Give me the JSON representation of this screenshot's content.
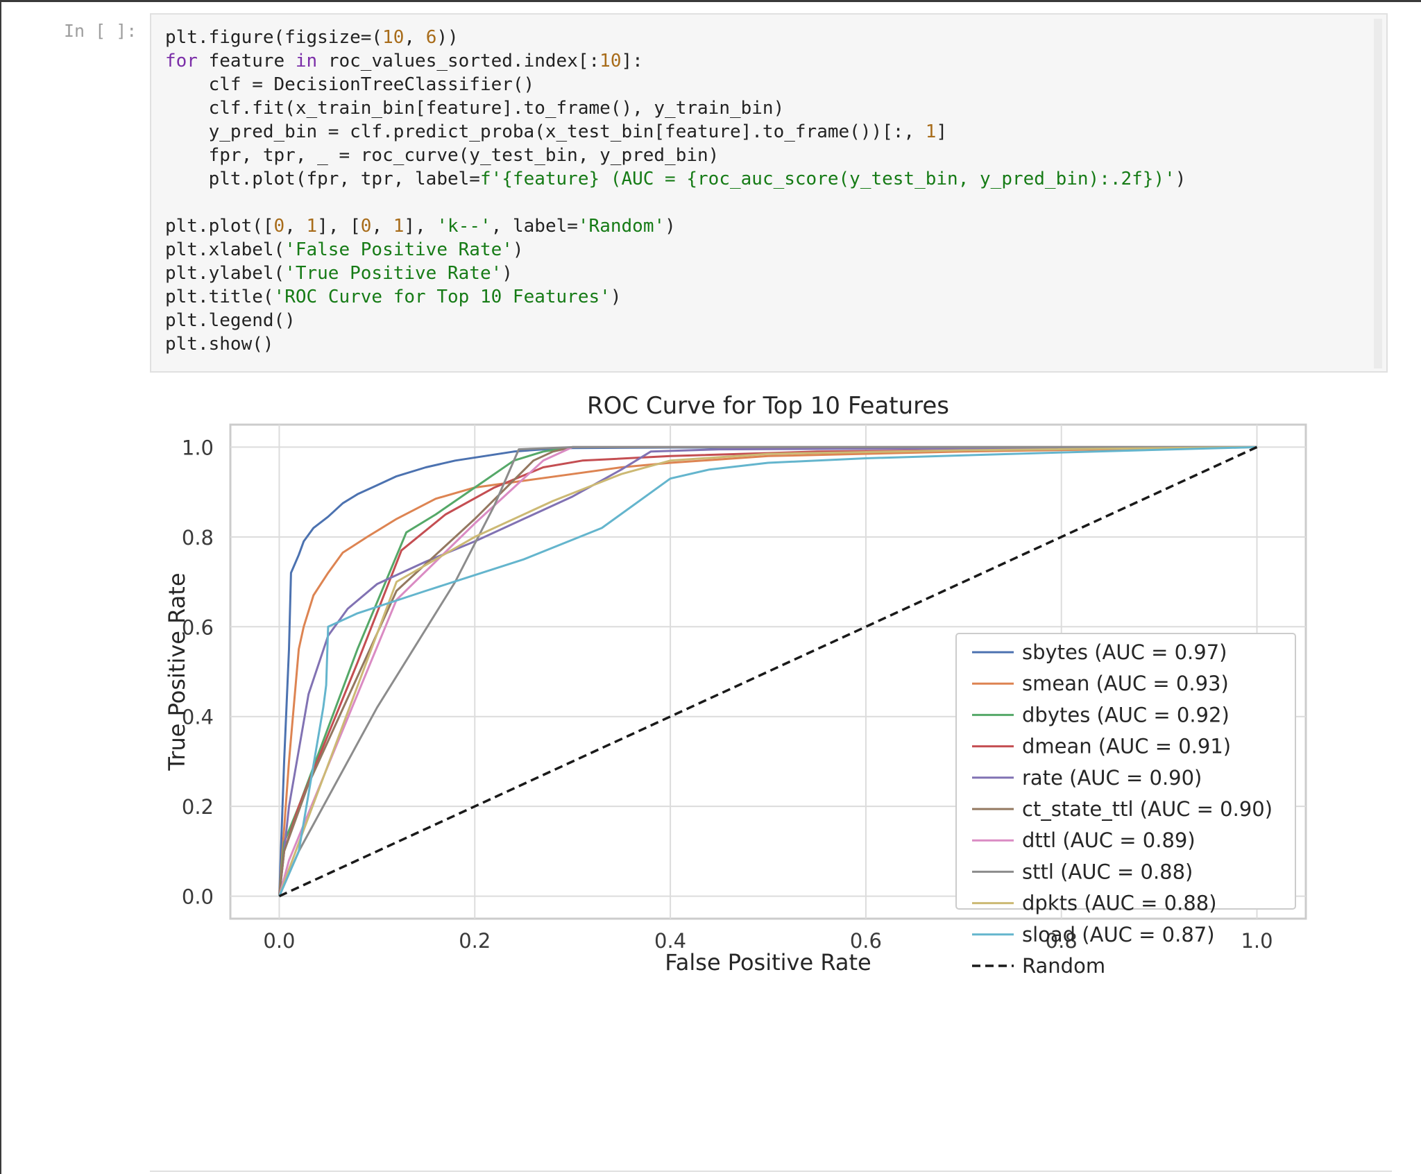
{
  "notebook": {
    "prompt": "In [ ]:",
    "code_lines": [
      [
        {
          "t": "p",
          "s": "plt.figure(figsize=("
        },
        {
          "t": "num",
          "s": "10"
        },
        {
          "t": "p",
          "s": ", "
        },
        {
          "t": "num",
          "s": "6"
        },
        {
          "t": "p",
          "s": "))"
        }
      ],
      [
        {
          "t": "kw",
          "s": "for"
        },
        {
          "t": "p",
          "s": " feature "
        },
        {
          "t": "kw",
          "s": "in"
        },
        {
          "t": "p",
          "s": " roc_values_sorted.index[:"
        },
        {
          "t": "num",
          "s": "10"
        },
        {
          "t": "p",
          "s": "]:"
        }
      ],
      [
        {
          "t": "p",
          "s": "    clf = DecisionTreeClassifier()"
        }
      ],
      [
        {
          "t": "p",
          "s": "    clf.fit(x_train_bin[feature].to_frame(), y_train_bin)"
        }
      ],
      [
        {
          "t": "p",
          "s": "    y_pred_bin = clf.predict_proba(x_test_bin[feature].to_frame())[:, "
        },
        {
          "t": "num",
          "s": "1"
        },
        {
          "t": "p",
          "s": "]"
        }
      ],
      [
        {
          "t": "p",
          "s": "    fpr, tpr, _ = roc_curve(y_test_bin, y_pred_bin)"
        }
      ],
      [
        {
          "t": "p",
          "s": "    plt.plot(fpr, tpr, label="
        },
        {
          "t": "str",
          "s": "f'{feature} (AUC = {roc_auc_score(y_test_bin, y_pred_bin):.2f})'"
        },
        {
          "t": "p",
          "s": ")"
        }
      ],
      [],
      [
        {
          "t": "p",
          "s": "plt.plot(["
        },
        {
          "t": "num",
          "s": "0"
        },
        {
          "t": "p",
          "s": ", "
        },
        {
          "t": "num",
          "s": "1"
        },
        {
          "t": "p",
          "s": "], ["
        },
        {
          "t": "num",
          "s": "0"
        },
        {
          "t": "p",
          "s": ", "
        },
        {
          "t": "num",
          "s": "1"
        },
        {
          "t": "p",
          "s": "], "
        },
        {
          "t": "str",
          "s": "'k--'"
        },
        {
          "t": "p",
          "s": ", label="
        },
        {
          "t": "str",
          "s": "'Random'"
        },
        {
          "t": "p",
          "s": ")"
        }
      ],
      [
        {
          "t": "p",
          "s": "plt.xlabel("
        },
        {
          "t": "str",
          "s": "'False Positive Rate'"
        },
        {
          "t": "p",
          "s": ")"
        }
      ],
      [
        {
          "t": "p",
          "s": "plt.ylabel("
        },
        {
          "t": "str",
          "s": "'True Positive Rate'"
        },
        {
          "t": "p",
          "s": ")"
        }
      ],
      [
        {
          "t": "p",
          "s": "plt.title("
        },
        {
          "t": "str",
          "s": "'ROC Curve for Top 10 Features'"
        },
        {
          "t": "p",
          "s": ")"
        }
      ],
      [
        {
          "t": "p",
          "s": "plt.legend()"
        }
      ],
      [
        {
          "t": "p",
          "s": "plt.show()"
        }
      ]
    ]
  },
  "chart_data": {
    "type": "line",
    "title": "ROC Curve for Top 10 Features",
    "xlabel": "False Positive Rate",
    "ylabel": "True Positive Rate",
    "xlim": [
      -0.05,
      1.05
    ],
    "ylim": [
      -0.05,
      1.05
    ],
    "xticks": [
      0.0,
      0.2,
      0.4,
      0.6,
      0.8,
      1.0
    ],
    "yticks": [
      0.0,
      0.2,
      0.4,
      0.6,
      0.8,
      1.0
    ],
    "xtick_labels": [
      "0.0",
      "0.2",
      "0.4",
      "0.6",
      "0.8",
      "1.0"
    ],
    "ytick_labels": [
      "0.0",
      "0.2",
      "0.4",
      "0.6",
      "0.8",
      "1.0"
    ],
    "grid": true,
    "legend_position": "lower-right",
    "series": [
      {
        "name": "sbytes (AUC = 0.97)",
        "color": "#4c72b0",
        "dashed": false,
        "points": [
          [
            0,
            0
          ],
          [
            0.005,
            0.3
          ],
          [
            0.01,
            0.55
          ],
          [
            0.012,
            0.72
          ],
          [
            0.02,
            0.76
          ],
          [
            0.025,
            0.79
          ],
          [
            0.035,
            0.82
          ],
          [
            0.05,
            0.845
          ],
          [
            0.065,
            0.875
          ],
          [
            0.08,
            0.895
          ],
          [
            0.1,
            0.915
          ],
          [
            0.12,
            0.935
          ],
          [
            0.15,
            0.955
          ],
          [
            0.18,
            0.97
          ],
          [
            0.21,
            0.98
          ],
          [
            0.24,
            0.99
          ],
          [
            0.27,
            0.995
          ],
          [
            0.3,
            0.998
          ],
          [
            0.4,
            0.999
          ],
          [
            1.0,
            1.0
          ]
        ]
      },
      {
        "name": "smean (AUC = 0.93)",
        "color": "#dd8452",
        "dashed": false,
        "points": [
          [
            0,
            0
          ],
          [
            0.005,
            0.15
          ],
          [
            0.01,
            0.3
          ],
          [
            0.02,
            0.55
          ],
          [
            0.025,
            0.6
          ],
          [
            0.035,
            0.67
          ],
          [
            0.05,
            0.72
          ],
          [
            0.065,
            0.765
          ],
          [
            0.09,
            0.8
          ],
          [
            0.12,
            0.84
          ],
          [
            0.16,
            0.885
          ],
          [
            0.2,
            0.91
          ],
          [
            0.25,
            0.925
          ],
          [
            0.3,
            0.94
          ],
          [
            0.35,
            0.955
          ],
          [
            0.4,
            0.965
          ],
          [
            0.5,
            0.98
          ],
          [
            0.7,
            0.99
          ],
          [
            1.0,
            1.0
          ]
        ]
      },
      {
        "name": "dbytes (AUC = 0.92)",
        "color": "#55a868",
        "dashed": false,
        "points": [
          [
            0,
            0
          ],
          [
            0.005,
            0.12
          ],
          [
            0.02,
            0.2
          ],
          [
            0.08,
            0.55
          ],
          [
            0.13,
            0.81
          ],
          [
            0.16,
            0.85
          ],
          [
            0.2,
            0.91
          ],
          [
            0.24,
            0.97
          ],
          [
            0.27,
            0.99
          ],
          [
            0.3,
            1.0
          ],
          [
            1.0,
            1.0
          ]
        ]
      },
      {
        "name": "dmean (AUC = 0.91)",
        "color": "#c44e52",
        "dashed": false,
        "points": [
          [
            0,
            0
          ],
          [
            0.005,
            0.1
          ],
          [
            0.02,
            0.2
          ],
          [
            0.08,
            0.52
          ],
          [
            0.125,
            0.77
          ],
          [
            0.17,
            0.85
          ],
          [
            0.22,
            0.91
          ],
          [
            0.27,
            0.955
          ],
          [
            0.31,
            0.97
          ],
          [
            0.4,
            0.98
          ],
          [
            0.55,
            0.99
          ],
          [
            0.8,
            0.995
          ],
          [
            1.0,
            1.0
          ]
        ]
      },
      {
        "name": "rate (AUC = 0.90)",
        "color": "#8172b3",
        "dashed": false,
        "points": [
          [
            0,
            0
          ],
          [
            0.01,
            0.2
          ],
          [
            0.03,
            0.45
          ],
          [
            0.05,
            0.58
          ],
          [
            0.07,
            0.64
          ],
          [
            0.1,
            0.695
          ],
          [
            0.15,
            0.745
          ],
          [
            0.2,
            0.79
          ],
          [
            0.25,
            0.84
          ],
          [
            0.3,
            0.89
          ],
          [
            0.35,
            0.95
          ],
          [
            0.38,
            0.99
          ],
          [
            0.45,
            0.995
          ],
          [
            1.0,
            1.0
          ]
        ]
      },
      {
        "name": "ct_state_ttl (AUC = 0.90)",
        "color": "#937860",
        "dashed": false,
        "points": [
          [
            0,
            0
          ],
          [
            0.005,
            0.1
          ],
          [
            0.03,
            0.25
          ],
          [
            0.12,
            0.68
          ],
          [
            0.2,
            0.84
          ],
          [
            0.26,
            0.97
          ],
          [
            0.28,
            0.99
          ],
          [
            0.3,
            1.0
          ],
          [
            1.0,
            1.0
          ]
        ]
      },
      {
        "name": "dttl (AUC = 0.89)",
        "color": "#da8bc3",
        "dashed": false,
        "points": [
          [
            0,
            0
          ],
          [
            0.01,
            0.08
          ],
          [
            0.12,
            0.66
          ],
          [
            0.2,
            0.83
          ],
          [
            0.27,
            0.97
          ],
          [
            0.3,
            1.0
          ],
          [
            1.0,
            1.0
          ]
        ]
      },
      {
        "name": "sttl (AUC = 0.88)",
        "color": "#8c8c8c",
        "dashed": false,
        "points": [
          [
            0,
            0
          ],
          [
            0.02,
            0.1
          ],
          [
            0.1,
            0.42
          ],
          [
            0.18,
            0.7
          ],
          [
            0.22,
            0.87
          ],
          [
            0.245,
            0.995
          ],
          [
            0.3,
            1.0
          ],
          [
            1.0,
            1.0
          ]
        ]
      },
      {
        "name": "dpkts (AUC = 0.88)",
        "color": "#ccb974",
        "dashed": false,
        "points": [
          [
            0,
            0
          ],
          [
            0.01,
            0.06
          ],
          [
            0.12,
            0.7
          ],
          [
            0.2,
            0.8
          ],
          [
            0.28,
            0.88
          ],
          [
            0.35,
            0.94
          ],
          [
            0.4,
            0.97
          ],
          [
            0.5,
            0.985
          ],
          [
            0.7,
            0.993
          ],
          [
            1.0,
            1.0
          ]
        ]
      },
      {
        "name": "sload (AUC = 0.87)",
        "color": "#64b5cd",
        "dashed": false,
        "points": [
          [
            0,
            0
          ],
          [
            0.02,
            0.1
          ],
          [
            0.045,
            0.42
          ],
          [
            0.048,
            0.47
          ],
          [
            0.05,
            0.6
          ],
          [
            0.08,
            0.63
          ],
          [
            0.15,
            0.68
          ],
          [
            0.25,
            0.75
          ],
          [
            0.33,
            0.82
          ],
          [
            0.4,
            0.93
          ],
          [
            0.44,
            0.95
          ],
          [
            0.5,
            0.965
          ],
          [
            0.6,
            0.975
          ],
          [
            0.8,
            0.988
          ],
          [
            1.0,
            1.0
          ]
        ]
      },
      {
        "name": "Random",
        "color": "#1a1a1a",
        "dashed": true,
        "points": [
          [
            0,
            0
          ],
          [
            1,
            1
          ]
        ]
      }
    ]
  }
}
